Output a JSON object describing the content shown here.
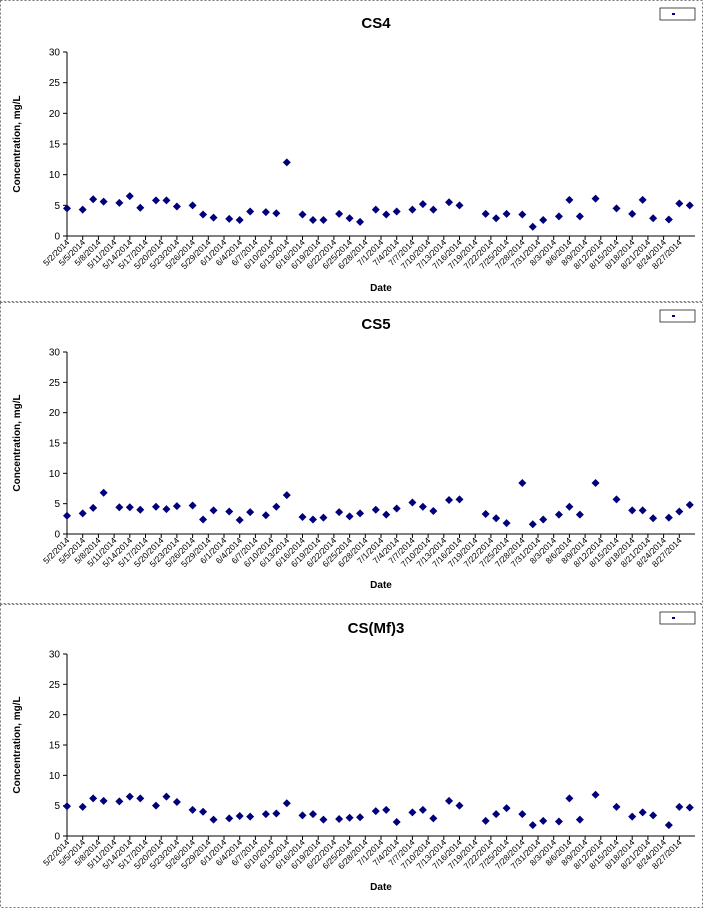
{
  "x_categories": [
    "5/2/2014",
    "5/5/2014",
    "5/8/2014",
    "5/11/2014",
    "5/14/2014",
    "5/17/2014",
    "5/20/2014",
    "5/23/2014",
    "5/26/2014",
    "5/29/2014",
    "6/1/2014",
    "6/4/2014",
    "6/7/2014",
    "6/10/2014",
    "6/13/2014",
    "6/16/2014",
    "6/19/2014",
    "6/22/2014",
    "6/25/2014",
    "6/28/2014",
    "7/1/2014",
    "7/4/2014",
    "7/7/2014",
    "7/10/2014",
    "7/13/2014",
    "7/16/2014",
    "7/19/2014",
    "7/22/2014",
    "7/25/2014",
    "7/28/2014",
    "7/31/2014",
    "8/3/2014",
    "8/6/2014",
    "8/9/2014",
    "8/12/2014",
    "8/15/2014",
    "8/18/2014",
    "8/21/2014",
    "8/24/2014",
    "8/27/2014"
  ],
  "colors": {
    "marker": "#00007a",
    "axis": "#000000",
    "panel_border": "#777777"
  },
  "chart_data": [
    {
      "type": "scatter",
      "title": "CS4",
      "xlabel": "Date",
      "ylabel": "Concentration, mg/L",
      "ylim": [
        0,
        30
      ],
      "yticks": [
        0,
        5,
        10,
        15,
        20,
        25,
        30
      ],
      "grid": false,
      "legend_placement": "top-right",
      "series": [
        {
          "x": [
            "5/2/2014",
            "5/5/2014",
            "5/7/2014",
            "5/9/2014",
            "5/12/2014",
            "5/14/2014",
            "5/16/2014",
            "5/19/2014",
            "5/21/2014",
            "5/23/2014",
            "5/26/2014",
            "5/28/2014",
            "5/30/2014",
            "6/2/2014",
            "6/4/2014",
            "6/6/2014",
            "6/9/2014",
            "6/11/2014",
            "6/13/2014",
            "6/16/2014",
            "6/18/2014",
            "6/20/2014",
            "6/23/2014",
            "6/25/2014",
            "6/27/2014",
            "6/30/2014",
            "7/2/2014",
            "7/4/2014",
            "7/7/2014",
            "7/9/2014",
            "7/11/2014",
            "7/14/2014",
            "7/16/2014",
            "7/21/2014",
            "7/23/2014",
            "7/25/2014",
            "7/28/2014",
            "7/30/2014",
            "8/1/2014",
            "8/4/2014",
            "8/6/2014",
            "8/8/2014",
            "8/11/2014",
            "8/15/2014",
            "8/18/2014",
            "8/20/2014",
            "8/22/2014",
            "8/25/2014",
            "8/27/2014",
            "8/29/2014"
          ],
          "y": [
            4.5,
            4.3,
            6.0,
            5.6,
            5.4,
            6.5,
            4.6,
            5.8,
            5.8,
            4.8,
            5.0,
            3.5,
            3.0,
            2.8,
            2.6,
            4.0,
            3.9,
            3.7,
            12.0,
            3.5,
            2.6,
            2.6,
            3.6,
            2.9,
            2.3,
            4.3,
            3.5,
            4.0,
            4.3,
            5.2,
            4.3,
            5.5,
            5.0,
            3.6,
            2.9,
            3.6,
            3.5,
            1.5,
            2.6,
            3.2,
            5.9,
            3.2,
            6.1,
            4.5,
            3.6,
            5.9,
            2.9,
            2.7,
            5.3,
            5.0
          ]
        }
      ]
    },
    {
      "type": "scatter",
      "title": "CS5",
      "xlabel": "Date",
      "ylabel": "Concentration, mg/L",
      "ylim": [
        0,
        30
      ],
      "yticks": [
        0,
        5,
        10,
        15,
        20,
        25,
        30
      ],
      "grid": false,
      "legend_placement": "top-right",
      "series": [
        {
          "x": [
            "5/2/2014",
            "5/5/2014",
            "5/7/2014",
            "5/9/2014",
            "5/12/2014",
            "5/14/2014",
            "5/16/2014",
            "5/19/2014",
            "5/21/2014",
            "5/23/2014",
            "5/26/2014",
            "5/28/2014",
            "5/30/2014",
            "6/2/2014",
            "6/4/2014",
            "6/6/2014",
            "6/9/2014",
            "6/11/2014",
            "6/13/2014",
            "6/16/2014",
            "6/18/2014",
            "6/20/2014",
            "6/23/2014",
            "6/25/2014",
            "6/27/2014",
            "6/30/2014",
            "7/2/2014",
            "7/4/2014",
            "7/7/2014",
            "7/9/2014",
            "7/11/2014",
            "7/14/2014",
            "7/16/2014",
            "7/21/2014",
            "7/23/2014",
            "7/25/2014",
            "7/28/2014",
            "7/30/2014",
            "8/1/2014",
            "8/4/2014",
            "8/6/2014",
            "8/8/2014",
            "8/11/2014",
            "8/15/2014",
            "8/18/2014",
            "8/20/2014",
            "8/22/2014",
            "8/25/2014",
            "8/27/2014",
            "8/29/2014"
          ],
          "y": [
            3.0,
            3.4,
            4.3,
            6.8,
            4.4,
            4.4,
            4.0,
            4.5,
            4.1,
            4.6,
            4.7,
            2.4,
            3.9,
            3.7,
            2.3,
            3.6,
            3.1,
            4.5,
            6.4,
            2.8,
            2.4,
            2.7,
            3.6,
            2.9,
            3.4,
            4.0,
            3.2,
            4.2,
            5.2,
            4.5,
            3.8,
            5.6,
            5.7,
            3.3,
            2.6,
            1.8,
            8.4,
            1.6,
            2.4,
            3.2,
            4.5,
            3.2,
            8.4,
            5.7,
            3.9,
            3.9,
            2.6,
            2.7,
            3.7,
            4.8
          ]
        }
      ]
    },
    {
      "type": "scatter",
      "title": "CS(Mf)3",
      "xlabel": "Date",
      "ylabel": "Concentration, mg/L",
      "ylim": [
        0,
        30
      ],
      "yticks": [
        0,
        5,
        10,
        15,
        20,
        25,
        30
      ],
      "grid": false,
      "legend_placement": "top-right",
      "series": [
        {
          "x": [
            "5/2/2014",
            "5/5/2014",
            "5/7/2014",
            "5/9/2014",
            "5/12/2014",
            "5/14/2014",
            "5/16/2014",
            "5/19/2014",
            "5/21/2014",
            "5/23/2014",
            "5/26/2014",
            "5/28/2014",
            "5/30/2014",
            "6/2/2014",
            "6/4/2014",
            "6/6/2014",
            "6/9/2014",
            "6/11/2014",
            "6/13/2014",
            "6/16/2014",
            "6/18/2014",
            "6/20/2014",
            "6/23/2014",
            "6/25/2014",
            "6/27/2014",
            "6/30/2014",
            "7/2/2014",
            "7/4/2014",
            "7/7/2014",
            "7/9/2014",
            "7/11/2014",
            "7/14/2014",
            "7/16/2014",
            "7/21/2014",
            "7/23/2014",
            "7/25/2014",
            "7/28/2014",
            "7/30/2014",
            "8/1/2014",
            "8/4/2014",
            "8/6/2014",
            "8/8/2014",
            "8/11/2014",
            "8/15/2014",
            "8/18/2014",
            "8/20/2014",
            "8/22/2014",
            "8/25/2014",
            "8/27/2014",
            "8/29/2014"
          ],
          "y": [
            4.9,
            4.8,
            6.2,
            5.8,
            5.7,
            6.5,
            6.2,
            5.0,
            6.5,
            5.6,
            4.3,
            4.0,
            2.7,
            2.9,
            3.3,
            3.2,
            3.6,
            3.7,
            5.4,
            3.4,
            3.6,
            2.7,
            2.8,
            3.0,
            3.1,
            4.1,
            4.3,
            2.3,
            3.9,
            4.3,
            2.9,
            5.8,
            5.0,
            2.5,
            3.6,
            4.6,
            3.6,
            1.8,
            2.5,
            2.4,
            6.2,
            2.7,
            6.8,
            4.8,
            3.2,
            3.9,
            3.4,
            1.8,
            4.8,
            4.7
          ]
        }
      ]
    }
  ]
}
